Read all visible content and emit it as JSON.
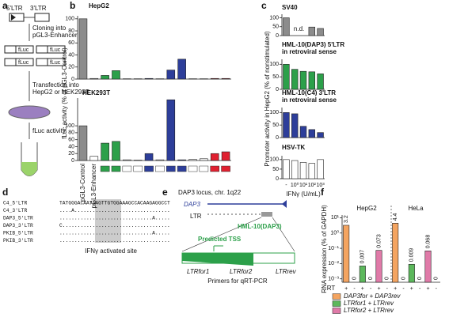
{
  "panels": {
    "letters": [
      "a",
      "b",
      "c",
      "d",
      "e",
      "f"
    ],
    "a": {
      "ltr5": "5'LTR",
      "ltr3": "3'LTR",
      "step1": [
        "Cloning into",
        "pGL3-Enhancer"
      ],
      "boxes": [
        "fLuc",
        "fLuc",
        "fLuc",
        "fLuc"
      ],
      "step2": [
        "Transfection into",
        "HepG2 or HEK293T"
      ],
      "step3": "fLuc activity"
    },
    "d": {
      "names": [
        "C4_5'LTR",
        "C4_3'LTR",
        "DAP3_5'LTR",
        "DAP3_3'LTR",
        "PKIB_5'LTR",
        "PKIB_3'LTR"
      ],
      "sequences": [
        "TATGGGACAATAAGTTGTGGAAAGCCACAAGAGGCCT",
        "....A................................",
        "...............................A.....",
        "C....................................",
        "...............................A.....",
        "....................................."
      ],
      "caption": "IFNγ activated site"
    },
    "e": {
      "title": "DAP3 locus, chr. 1q22",
      "gene": "DAP3",
      "ltr": "LTR",
      "element": "HML-10(DAP3)",
      "tss": "Predicted TSS",
      "primers": [
        "LTRfor1",
        "LTRfor2",
        "LTRrev"
      ],
      "caption": "Primers for qRT-PCR"
    }
  },
  "chart_data": [
    {
      "type": "bar",
      "title": "HepG2",
      "ylabel": "fLuc activity (% of pGL3-Control)",
      "values": [
        100,
        1,
        6,
        14,
        0.5,
        0.5,
        1,
        0.5,
        15,
        33,
        0.5,
        0.5,
        1,
        1
      ],
      "colors": [
        "#8c8c8c",
        "#ffffff",
        "#2ca04a",
        "#2ca04a",
        "#ffffff",
        "#ffffff",
        "#2d3e9a",
        "#ffffff",
        "#2d3e9a",
        "#2d3e9a",
        "#ffffff",
        "#ffffff",
        "#e02030",
        "#e02030"
      ],
      "ylim": [
        0,
        105
      ],
      "yticks": [
        0,
        20,
        40,
        60,
        80,
        100
      ]
    },
    {
      "type": "bar",
      "title": "HEK293T",
      "categories": [
        "pGL3-Control",
        "pGL3-Enhancer",
        null,
        null,
        null,
        null,
        null,
        null,
        null,
        null,
        null,
        null,
        null,
        null
      ],
      "values": [
        100,
        12,
        50,
        55,
        2,
        1,
        20,
        2,
        175,
        2,
        3,
        5,
        20,
        25
      ],
      "colors": [
        "#8c8c8c",
        "#ffffff",
        "#2ca04a",
        "#2ca04a",
        "#ffffff",
        "#ffffff",
        "#2d3e9a",
        "#ffffff",
        "#2d3e9a",
        "#2d3e9a",
        "#ffffff",
        "#ffffff",
        "#e02030",
        "#e02030"
      ],
      "ylim": [
        0,
        180
      ],
      "yticks": [
        0,
        20,
        40,
        60,
        80,
        100
      ]
    },
    {
      "type": "bar",
      "title": [
        "SV40"
      ],
      "ylabel": "Promoter activity in HepG2 (% of nonstimulated)",
      "annotation": "n.d.",
      "values": [
        100,
        null,
        null,
        48,
        40
      ],
      "color": "#8c8c8c",
      "ylim": [
        0,
        120
      ],
      "yticks": [
        0,
        50,
        100
      ]
    },
    {
      "type": "bar",
      "title": [
        "HML-10(DAP3) 5'LTR",
        "in retroviral sense"
      ],
      "values": [
        100,
        80,
        72,
        70,
        62
      ],
      "color": "#2ca04a",
      "ylim": [
        0,
        120
      ],
      "yticks": [
        0,
        50,
        100
      ]
    },
    {
      "type": "bar",
      "title": [
        "HML-10(C4) 3'LTR",
        "in retroviral sense"
      ],
      "values": [
        100,
        95,
        45,
        32,
        20
      ],
      "color": "#2d3e9a",
      "ylim": [
        0,
        120
      ],
      "yticks": [
        0,
        50,
        100
      ]
    },
    {
      "type": "bar",
      "title": [
        "HSV-TK"
      ],
      "xlabel": "IFNγ (U/mL)",
      "categories": [
        "-",
        "10⁰",
        "10¹",
        "10²",
        "10³"
      ],
      "values": [
        100,
        95,
        85,
        80,
        100
      ],
      "color": "#ffffff",
      "ylim": [
        0,
        120
      ],
      "yticks": [
        0,
        50,
        100
      ]
    },
    {
      "type": "bar",
      "log_scale": true,
      "ylabel": "RNA expression (% of GAPDH)",
      "groups": [
        "HepG2",
        "HeLa"
      ],
      "xlabel": "RT",
      "categories": [
        "+",
        "-",
        "+",
        "-",
        "+",
        "-",
        "+",
        "-",
        "+",
        "-",
        "+",
        "-"
      ],
      "values": [
        3.2,
        0,
        0.007,
        0,
        0.073,
        0,
        4.4,
        0,
        0.009,
        0,
        0.068,
        0
      ],
      "value_labels": [
        "3.2",
        "0",
        "0.007",
        "0",
        "0.073",
        "0",
        "4.4",
        "0",
        "0.009",
        "0",
        "0.068",
        "0"
      ],
      "colors": [
        "#f4a460",
        "#f4a460",
        "#5cb85c",
        "#5cb85c",
        "#e07aa8",
        "#e07aa8",
        "#f4a460",
        "#f4a460",
        "#5cb85c",
        "#5cb85c",
        "#e07aa8",
        "#e07aa8"
      ],
      "ylim": [
        0.0006,
        15
      ],
      "yticks": [
        {
          "value": 0.001,
          "label": "10⁻³"
        },
        {
          "value": 0.01,
          "label": "10⁻²"
        },
        {
          "value": 0.1,
          "label": "10⁻¹"
        },
        {
          "value": 1,
          "label": "10⁰"
        },
        {
          "value": 10,
          "label": "10¹"
        }
      ],
      "legend": [
        {
          "name": "DAP3for + DAP3rev",
          "color": "#f4a460"
        },
        {
          "name": "LTRfor1 + LTRrev",
          "color": "#5cb85c"
        },
        {
          "name": "LTRfor2 + LTRrev",
          "color": "#e07aa8"
        }
      ]
    }
  ]
}
